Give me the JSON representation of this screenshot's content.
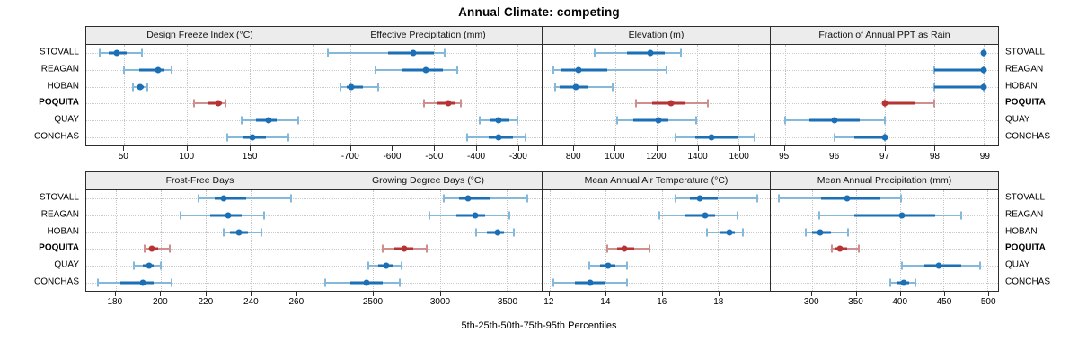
{
  "title": "Annual Climate: competing",
  "caption": "5th-25th-50th-75th-95th Percentiles",
  "sites": [
    "STOVALL",
    "REAGAN",
    "HOBAN",
    "POQUITA",
    "QUAY",
    "CONCHAS"
  ],
  "highlight_site": "POQUITA",
  "colors": {
    "point_dark_blue": "#1b6fb5",
    "whisker_light_blue": "#85b9dc",
    "point_dark_red": "#b63333",
    "whisker_light_red": "#d08f8f",
    "header_bg": "#ececec",
    "panel_border": "#2d2d2d",
    "gridline": "#c3c3c3"
  },
  "chart_data": {
    "type": "dotplot-percentiles",
    "layout": "2 rows x 4 columns, free x scales per panel",
    "percentile_labels": [
      "5th",
      "25th",
      "50th",
      "75th",
      "95th"
    ],
    "legend_position": "none",
    "grid": "dotted",
    "panels": [
      {
        "title": "Design Freeze Index (°C)",
        "xlim": [
          20,
          201
        ],
        "ticks": [
          50,
          100,
          150,
          200
        ],
        "tick_labels": [
          "50",
          "100",
          "150",
          ""
        ],
        "rows": [
          {
            "site": "STOVALL",
            "p": [
              31,
              38,
              44,
              52,
              64
            ]
          },
          {
            "site": "REAGAN",
            "p": [
              50,
              62,
              77,
              82,
              88
            ]
          },
          {
            "site": "HOBAN",
            "p": [
              57,
              60,
              63,
              66,
              69
            ]
          },
          {
            "site": "POQUITA",
            "p": [
              106,
              117,
              125,
              128,
              131
            ]
          },
          {
            "site": "QUAY",
            "p": [
              144,
              155,
              165,
              172,
              189
            ]
          },
          {
            "site": "CONCHAS",
            "p": [
              132,
              145,
              152,
              163,
              181
            ]
          }
        ]
      },
      {
        "title": "Effective Precipitation (mm)",
        "xlim": [
          -787,
          -242
        ],
        "ticks": [
          -700,
          -600,
          -500,
          -400,
          -300
        ],
        "tick_labels": [
          "-700",
          "-600",
          "-500",
          "-400",
          "-300"
        ],
        "rows": [
          {
            "site": "STOVALL",
            "p": [
              -755,
              -610,
              -550,
              -500,
              -475
            ]
          },
          {
            "site": "REAGAN",
            "p": [
              -640,
              -575,
              -520,
              -480,
              -445
            ]
          },
          {
            "site": "HOBAN",
            "p": [
              -725,
              -710,
              -698,
              -670,
              -635
            ]
          },
          {
            "site": "POQUITA",
            "p": [
              -525,
              -495,
              -465,
              -450,
              -435
            ]
          },
          {
            "site": "QUAY",
            "p": [
              -390,
              -365,
              -345,
              -320,
              -300
            ]
          },
          {
            "site": "CONCHAS",
            "p": [
              -420,
              -370,
              -345,
              -310,
              -280
            ]
          }
        ]
      },
      {
        "title": "Elevation (m)",
        "xlim": [
          647,
          1753
        ],
        "ticks": [
          800,
          1000,
          1200,
          1400,
          1600
        ],
        "tick_labels": [
          "800",
          "1000",
          "1200",
          "1400",
          "1600"
        ],
        "rows": [
          {
            "site": "STOVALL",
            "p": [
              900,
              1060,
              1170,
              1240,
              1320
            ]
          },
          {
            "site": "REAGAN",
            "p": [
              700,
              740,
              820,
              960,
              1250
            ]
          },
          {
            "site": "HOBAN",
            "p": [
              710,
              730,
              810,
              870,
              990
            ]
          },
          {
            "site": "POQUITA",
            "p": [
              1100,
              1180,
              1270,
              1340,
              1450
            ]
          },
          {
            "site": "QUAY",
            "p": [
              1010,
              1090,
              1210,
              1260,
              1395
            ]
          },
          {
            "site": "CONCHAS",
            "p": [
              1295,
              1390,
              1470,
              1600,
              1680
            ]
          }
        ]
      },
      {
        "title": "Fraction of Annual PPT as Rain",
        "xlim": [
          94.72,
          99.28
        ],
        "ticks": [
          95,
          96,
          97,
          98,
          99
        ],
        "tick_labels": [
          "95",
          "96",
          "97",
          "98",
          "99"
        ],
        "rows": [
          {
            "site": "STOVALL",
            "p": [
              99,
              99,
              99,
              99,
              99
            ]
          },
          {
            "site": "REAGAN",
            "p": [
              98,
              98,
              99,
              99,
              99
            ]
          },
          {
            "site": "HOBAN",
            "p": [
              98,
              98,
              99,
              99,
              99
            ]
          },
          {
            "site": "POQUITA",
            "p": [
              97,
              97,
              97,
              97.6,
              98
            ]
          },
          {
            "site": "QUAY",
            "p": [
              95,
              95.5,
              96,
              96.5,
              97
            ]
          },
          {
            "site": "CONCHAS",
            "p": [
              96,
              96.4,
              97,
              97,
              97
            ]
          }
        ]
      },
      {
        "title": "Frost-Free Days",
        "xlim": [
          167,
          268
        ],
        "ticks": [
          180,
          200,
          220,
          240,
          260
        ],
        "tick_labels": [
          "180",
          "200",
          "220",
          "240",
          "260"
        ],
        "rows": [
          {
            "site": "STOVALL",
            "p": [
              217,
              224,
              228,
              238,
              258
            ]
          },
          {
            "site": "REAGAN",
            "p": [
              209,
              222,
              230,
              236,
              246
            ]
          },
          {
            "site": "HOBAN",
            "p": [
              228,
              231,
              235,
              239,
              245
            ]
          },
          {
            "site": "POQUITA",
            "p": [
              193,
              195,
              196,
              199,
              204
            ]
          },
          {
            "site": "QUAY",
            "p": [
              188,
              192,
              195,
              197,
              200
            ]
          },
          {
            "site": "CONCHAS",
            "p": [
              172,
              182,
              192,
              197,
              205
            ]
          }
        ]
      },
      {
        "title": "Growing Degree Days (°C)",
        "xlim": [
          2060,
          3760
        ],
        "ticks": [
          2500,
          3000,
          3500
        ],
        "tick_labels": [
          "2500",
          "3000",
          "3500"
        ],
        "rows": [
          {
            "site": "STOVALL",
            "p": [
              3030,
              3140,
              3210,
              3380,
              3650
            ]
          },
          {
            "site": "REAGAN",
            "p": [
              2920,
              3120,
              3260,
              3340,
              3520
            ]
          },
          {
            "site": "HOBAN",
            "p": [
              3270,
              3350,
              3430,
              3480,
              3550
            ]
          },
          {
            "site": "POQUITA",
            "p": [
              2570,
              2660,
              2730,
              2800,
              2900
            ]
          },
          {
            "site": "QUAY",
            "p": [
              2460,
              2540,
              2600,
              2650,
              2710
            ]
          },
          {
            "site": "CONCHAS",
            "p": [
              2140,
              2330,
              2450,
              2570,
              2700
            ]
          }
        ]
      },
      {
        "title": "Mean Annual Air Temperature (°C)",
        "xlim": [
          11.75,
          19.85
        ],
        "ticks": [
          12,
          14,
          16,
          18
        ],
        "tick_labels": [
          "12",
          "14",
          "16",
          "18"
        ],
        "rows": [
          {
            "site": "STOVALL",
            "p": [
              16.5,
              17.0,
              17.35,
              18.0,
              19.4
            ]
          },
          {
            "site": "REAGAN",
            "p": [
              15.9,
              16.8,
              17.55,
              17.9,
              18.7
            ]
          },
          {
            "site": "HOBAN",
            "p": [
              17.6,
              18.1,
              18.4,
              18.6,
              18.9
            ]
          },
          {
            "site": "POQUITA",
            "p": [
              14.05,
              14.4,
              14.65,
              15.0,
              15.55
            ]
          },
          {
            "site": "QUAY",
            "p": [
              13.4,
              13.8,
              14.1,
              14.35,
              14.75
            ]
          },
          {
            "site": "CONCHAS",
            "p": [
              12.15,
              12.9,
              13.45,
              14.0,
              14.75
            ]
          }
        ]
      },
      {
        "title": "Mean Annual Precipitation (mm)",
        "xlim": [
          253,
          512
        ],
        "ticks": [
          300,
          350,
          400,
          450,
          500
        ],
        "tick_labels": [
          "300",
          "350",
          "400",
          "450",
          "500"
        ],
        "rows": [
          {
            "site": "STOVALL",
            "p": [
              262,
              310,
              340,
              378,
              401
            ]
          },
          {
            "site": "REAGAN",
            "p": [
              308,
              348,
              402,
              440,
              470
            ]
          },
          {
            "site": "HOBAN",
            "p": [
              293,
              300,
              309,
              322,
              341
            ]
          },
          {
            "site": "POQUITA",
            "p": [
              323,
              327,
              332,
              340,
              353
            ]
          },
          {
            "site": "QUAY",
            "p": [
              402,
              428,
              444,
              470,
              492
            ]
          },
          {
            "site": "CONCHAS",
            "p": [
              389,
              397,
              405,
              411,
              418
            ]
          }
        ]
      }
    ]
  }
}
